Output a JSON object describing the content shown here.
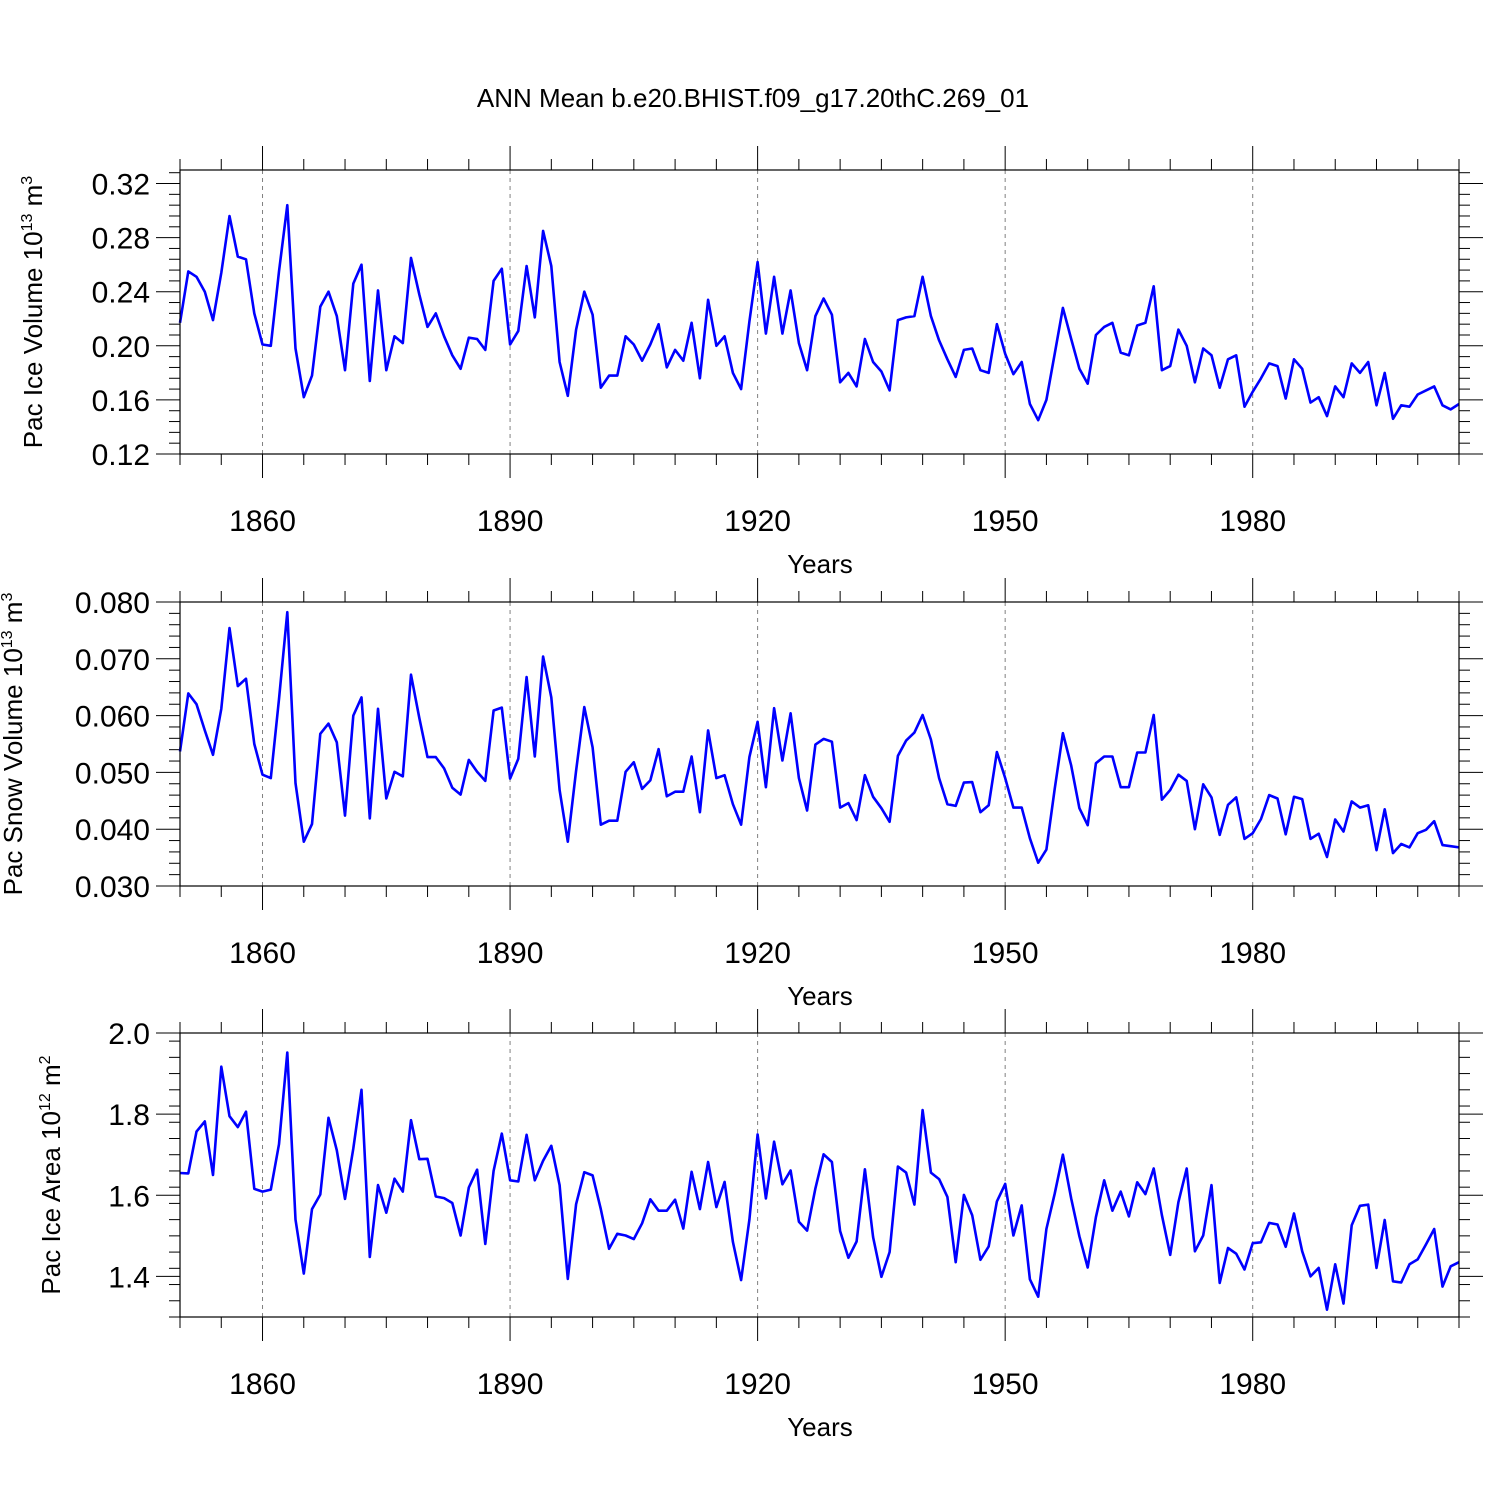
{
  "title": "ANN Mean b.e20.BHIST.f09_g17.20thC.269_01",
  "chart_data": [
    {
      "type": "line",
      "title": "ANN Mean b.e20.BHIST.f09_g17.20thC.269_01",
      "xlabel": "Years",
      "ylabel": "Pac Ice Volume 10",
      "ylabel_exp": "13",
      "ylabel_unit": " m",
      "ylabel_unit_exp": "3",
      "xlim": [
        1850,
        2005
      ],
      "ylim": [
        0.12,
        0.33
      ],
      "xticks": [
        1860,
        1890,
        1920,
        1950,
        1980
      ],
      "xtick_labels": [
        "1860",
        "1890",
        "1920",
        "1950",
        "1980"
      ],
      "yticks": [
        0.12,
        0.16,
        0.2,
        0.24,
        0.28,
        0.32
      ],
      "ytick_labels": [
        "0.12",
        "0.16",
        "0.20",
        "0.24",
        "0.28",
        "0.32"
      ],
      "grid": "vertical dashed at labelled years",
      "series": [
        {
          "name": "Pac Ice Volume",
          "color": "#0000ff",
          "x_start": 1850,
          "values": [
            0.217,
            0.255,
            0.251,
            0.24,
            0.219,
            0.254,
            0.296,
            0.266,
            0.264,
            0.224,
            0.201,
            0.2,
            0.255,
            0.304,
            0.198,
            0.162,
            0.178,
            0.229,
            0.24,
            0.222,
            0.182,
            0.246,
            0.26,
            0.174,
            0.241,
            0.182,
            0.207,
            0.202,
            0.265,
            0.238,
            0.214,
            0.224,
            0.207,
            0.193,
            0.183,
            0.206,
            0.205,
            0.197,
            0.248,
            0.257,
            0.201,
            0.211,
            0.259,
            0.221,
            0.285,
            0.259,
            0.188,
            0.163,
            0.212,
            0.24,
            0.223,
            0.169,
            0.178,
            0.178,
            0.207,
            0.201,
            0.189,
            0.201,
            0.216,
            0.184,
            0.197,
            0.189,
            0.217,
            0.176,
            0.234,
            0.2,
            0.207,
            0.18,
            0.168,
            0.218,
            0.262,
            0.209,
            0.251,
            0.209,
            0.241,
            0.202,
            0.182,
            0.222,
            0.235,
            0.223,
            0.173,
            0.18,
            0.17,
            0.205,
            0.188,
            0.181,
            0.167,
            0.219,
            0.221,
            0.222,
            0.251,
            0.222,
            0.204,
            0.19,
            0.177,
            0.197,
            0.198,
            0.182,
            0.18,
            0.216,
            0.194,
            0.179,
            0.188,
            0.157,
            0.145,
            0.16,
            0.194,
            0.228,
            0.205,
            0.183,
            0.172,
            0.208,
            0.214,
            0.217,
            0.195,
            0.193,
            0.215,
            0.217,
            0.244,
            0.182,
            0.185,
            0.212,
            0.2,
            0.173,
            0.198,
            0.193,
            0.169,
            0.19,
            0.193,
            0.155,
            0.166,
            0.176,
            0.187,
            0.185,
            0.161,
            0.19,
            0.183,
            0.158,
            0.162,
            0.148,
            0.17,
            0.162,
            0.187,
            0.18,
            0.188,
            0.156,
            0.18,
            0.146,
            0.156,
            0.155,
            0.164,
            0.167,
            0.17,
            0.156,
            0.153,
            0.157
          ]
        }
      ]
    },
    {
      "type": "line",
      "xlabel": "Years",
      "ylabel": "Pac Snow Volume 10",
      "ylabel_exp": "13",
      "ylabel_unit": " m",
      "ylabel_unit_exp": "3",
      "xlim": [
        1850,
        2005
      ],
      "ylim": [
        0.03,
        0.08
      ],
      "xticks": [
        1860,
        1890,
        1920,
        1950,
        1980
      ],
      "xtick_labels": [
        "1860",
        "1890",
        "1920",
        "1950",
        "1980"
      ],
      "yticks": [
        0.03,
        0.04,
        0.05,
        0.06,
        0.07,
        0.08
      ],
      "ytick_labels": [
        "0.030",
        "0.040",
        "0.050",
        "0.060",
        "0.070",
        "0.080"
      ],
      "grid": "vertical dashed at labelled years",
      "series": [
        {
          "name": "Pac Snow Volume",
          "color": "#0000ff",
          "x_start": 1850,
          "values": [
            0.0537,
            0.0639,
            0.062,
            0.0574,
            0.0531,
            0.0612,
            0.0754,
            0.0652,
            0.0665,
            0.055,
            0.0496,
            0.049,
            0.0629,
            0.0782,
            0.0481,
            0.0378,
            0.0409,
            0.0568,
            0.0586,
            0.0553,
            0.0424,
            0.06,
            0.0632,
            0.0419,
            0.0612,
            0.0454,
            0.0501,
            0.0493,
            0.0672,
            0.0596,
            0.0527,
            0.0527,
            0.0507,
            0.0473,
            0.0461,
            0.0522,
            0.0501,
            0.0485,
            0.0609,
            0.0614,
            0.0489,
            0.0524,
            0.0668,
            0.0528,
            0.0704,
            0.0632,
            0.0469,
            0.0378,
            0.0503,
            0.0615,
            0.0544,
            0.0408,
            0.0415,
            0.0415,
            0.0501,
            0.0518,
            0.0471,
            0.0486,
            0.0541,
            0.0458,
            0.0466,
            0.0466,
            0.0528,
            0.043,
            0.0574,
            0.049,
            0.0495,
            0.0444,
            0.0408,
            0.0527,
            0.0589,
            0.0474,
            0.0613,
            0.0521,
            0.0604,
            0.049,
            0.0433,
            0.0549,
            0.0559,
            0.0554,
            0.0438,
            0.0446,
            0.0416,
            0.0495,
            0.0457,
            0.0437,
            0.0413,
            0.0529,
            0.0556,
            0.057,
            0.0601,
            0.0558,
            0.049,
            0.0444,
            0.0441,
            0.0482,
            0.0483,
            0.043,
            0.0442,
            0.0536,
            0.049,
            0.0438,
            0.0438,
            0.0384,
            0.0341,
            0.0364,
            0.0471,
            0.0569,
            0.0512,
            0.0437,
            0.0407,
            0.0516,
            0.0528,
            0.0528,
            0.0474,
            0.0474,
            0.0535,
            0.0535,
            0.0601,
            0.0452,
            0.0469,
            0.0496,
            0.0485,
            0.04,
            0.0479,
            0.0456,
            0.039,
            0.0443,
            0.0456,
            0.0383,
            0.0393,
            0.0418,
            0.046,
            0.0454,
            0.0391,
            0.0457,
            0.0453,
            0.0383,
            0.0392,
            0.0351,
            0.0417,
            0.0396,
            0.0449,
            0.0438,
            0.0442,
            0.0363,
            0.0435,
            0.0358,
            0.0374,
            0.0368,
            0.0393,
            0.0399,
            0.0414,
            0.0372,
            0.037,
            0.0368
          ]
        }
      ]
    },
    {
      "type": "line",
      "xlabel": "Years",
      "ylabel": "Pac Ice Area 10",
      "ylabel_exp": "12",
      "ylabel_unit": " m",
      "ylabel_unit_exp": "2",
      "xlim": [
        1850,
        2005
      ],
      "ylim": [
        1.3,
        2.0
      ],
      "xticks": [
        1860,
        1890,
        1920,
        1950,
        1980
      ],
      "xtick_labels": [
        "1860",
        "1890",
        "1920",
        "1950",
        "1980"
      ],
      "yticks": [
        1.4,
        1.6,
        1.8,
        2.0
      ],
      "ytick_labels": [
        "1.4",
        "1.6",
        "1.8",
        "2.0"
      ],
      "grid": "vertical dashed at labelled years",
      "series": [
        {
          "name": "Pac Ice Area",
          "color": "#0000ff",
          "x_start": 1850,
          "values": [
            1.655,
            1.654,
            1.757,
            1.782,
            1.65,
            1.917,
            1.795,
            1.768,
            1.806,
            1.616,
            1.609,
            1.614,
            1.726,
            1.952,
            1.54,
            1.407,
            1.566,
            1.602,
            1.791,
            1.711,
            1.591,
            1.715,
            1.86,
            1.448,
            1.625,
            1.557,
            1.641,
            1.609,
            1.785,
            1.689,
            1.69,
            1.597,
            1.593,
            1.581,
            1.501,
            1.619,
            1.663,
            1.48,
            1.66,
            1.752,
            1.637,
            1.634,
            1.749,
            1.637,
            1.685,
            1.722,
            1.625,
            1.394,
            1.578,
            1.657,
            1.649,
            1.566,
            1.468,
            1.505,
            1.501,
            1.492,
            1.531,
            1.59,
            1.562,
            1.562,
            1.589,
            1.518,
            1.658,
            1.566,
            1.682,
            1.571,
            1.633,
            1.485,
            1.391,
            1.54,
            1.75,
            1.592,
            1.732,
            1.627,
            1.661,
            1.535,
            1.513,
            1.617,
            1.701,
            1.682,
            1.512,
            1.446,
            1.486,
            1.664,
            1.497,
            1.399,
            1.46,
            1.671,
            1.656,
            1.577,
            1.81,
            1.656,
            1.64,
            1.596,
            1.435,
            1.601,
            1.551,
            1.441,
            1.474,
            1.585,
            1.628,
            1.501,
            1.575,
            1.393,
            1.35,
            1.517,
            1.604,
            1.7,
            1.592,
            1.499,
            1.422,
            1.546,
            1.637,
            1.562,
            1.609,
            1.548,
            1.632,
            1.603,
            1.666,
            1.551,
            1.453,
            1.583,
            1.666,
            1.462,
            1.501,
            1.625,
            1.384,
            1.47,
            1.456,
            1.417,
            1.482,
            1.484,
            1.532,
            1.528,
            1.473,
            1.555,
            1.462,
            1.4,
            1.421,
            1.318,
            1.43,
            1.333,
            1.526,
            1.574,
            1.577,
            1.421,
            1.539,
            1.388,
            1.385,
            1.43,
            1.442,
            1.479,
            1.517,
            1.375,
            1.425,
            1.435
          ]
        }
      ]
    }
  ]
}
